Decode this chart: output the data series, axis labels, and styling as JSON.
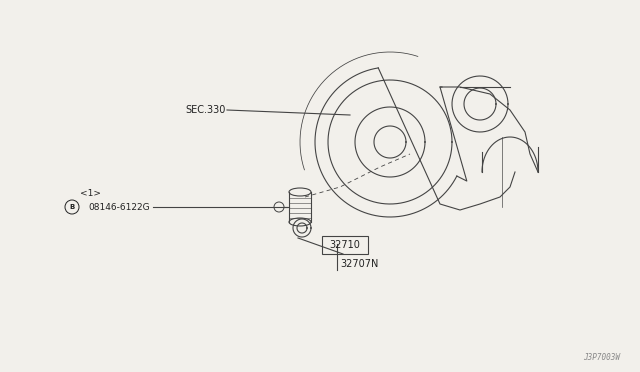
{
  "bg_color": "#f2f0eb",
  "line_color": "#444444",
  "text_color": "#222222",
  "watermark": "J3P7003W",
  "labels": {
    "part_32707N": "32707N",
    "part_32710": "32710",
    "part_bolt": "08146-6122G",
    "part_bolt_sub": "<1>",
    "part_sec330": "SEC.330"
  },
  "figsize": [
    6.4,
    3.72
  ],
  "dpi": 100
}
